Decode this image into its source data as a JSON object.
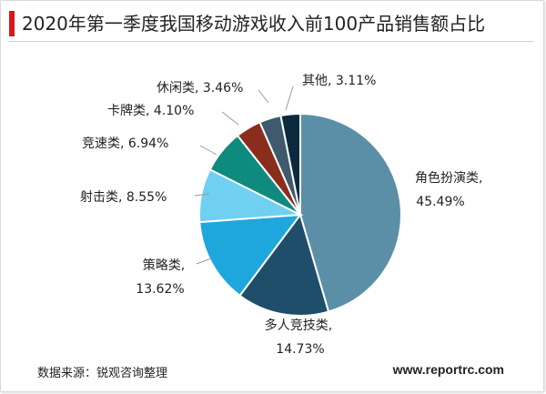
{
  "title": "2020年第一季度我国移动游戏收入前100产品销售额占比",
  "source": "数据来源：锐观咨询整理",
  "website": "www.reportrc.com",
  "chart_data": {
    "type": "pie",
    "title": "2020年第一季度我国移动游戏收入前100产品销售额占比",
    "start_angle": "12 o'clock",
    "direction": "clockwise",
    "categories": [
      "角色扮演类",
      "多人竞技类",
      "策略类",
      "射击类",
      "竞速类",
      "卡牌类",
      "休闲类",
      "其他"
    ],
    "values": [
      45.49,
      14.73,
      13.62,
      8.55,
      6.94,
      4.1,
      3.46,
      3.11
    ],
    "value_labels": [
      "45.49%",
      "14.73%",
      "13.62%",
      "8.55%",
      "6.94%",
      "4.10%",
      "3.46%",
      "3.11%"
    ],
    "colors": [
      "#5b8fa8",
      "#1f4e6b",
      "#1ea7dc",
      "#6fd0f2",
      "#0f8a7e",
      "#8b2d1c",
      "#3f5a6e",
      "#0c2a3e"
    ]
  }
}
